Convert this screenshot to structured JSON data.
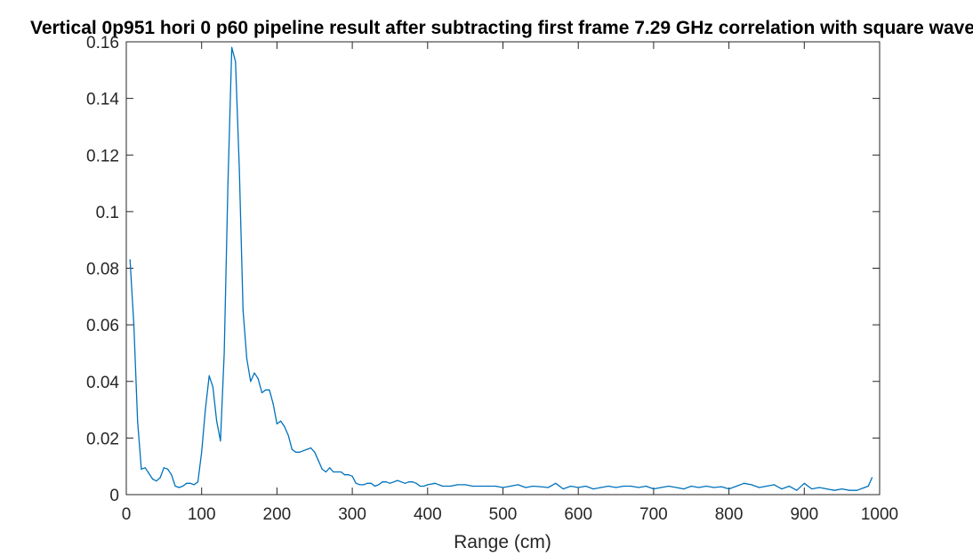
{
  "chart_data": {
    "type": "line",
    "title": "Vertical 0p951 hori 0 p60 pipeline result after subtracting first frame 7.29 GHz correlation with square wave",
    "xlabel": "Range (cm)",
    "ylabel": "",
    "xlim": [
      0,
      1000
    ],
    "ylim": [
      0,
      0.16
    ],
    "xticks": [
      "0",
      "100",
      "200",
      "300",
      "400",
      "500",
      "600",
      "700",
      "800",
      "900",
      "1000"
    ],
    "yticks": [
      "0",
      "0.02",
      "0.04",
      "0.06",
      "0.08",
      "0.1",
      "0.12",
      "0.14",
      "0.16"
    ],
    "grid": false,
    "line_color": "#0072BD",
    "series": [
      {
        "x": [
          5,
          10,
          15,
          20,
          25,
          30,
          35,
          40,
          45,
          50,
          55,
          60,
          65,
          70,
          75,
          80,
          85,
          90,
          95,
          100,
          105,
          110,
          115,
          120,
          125,
          130,
          135,
          140,
          145,
          150,
          155,
          160,
          165,
          170,
          175,
          180,
          185,
          190,
          195,
          200,
          205,
          210,
          215,
          220,
          225,
          230,
          235,
          240,
          245,
          250,
          255,
          260,
          265,
          270,
          275,
          280,
          285,
          290,
          295,
          300,
          305,
          310,
          315,
          320,
          325,
          330,
          335,
          340,
          345,
          350,
          355,
          360,
          365,
          370,
          375,
          380,
          385,
          390,
          395,
          400,
          410,
          420,
          430,
          440,
          450,
          460,
          470,
          480,
          490,
          500,
          510,
          520,
          530,
          540,
          550,
          560,
          570,
          580,
          590,
          600,
          610,
          620,
          630,
          640,
          650,
          660,
          670,
          680,
          690,
          700,
          710,
          720,
          730,
          740,
          750,
          760,
          770,
          780,
          790,
          800,
          810,
          820,
          830,
          840,
          850,
          860,
          870,
          880,
          890,
          900,
          910,
          920,
          930,
          940,
          950,
          960,
          970,
          980,
          985,
          990
        ],
        "y": [
          0.083,
          0.06,
          0.026,
          0.009,
          0.0095,
          0.0075,
          0.0055,
          0.0048,
          0.006,
          0.0095,
          0.009,
          0.007,
          0.003,
          0.0025,
          0.003,
          0.004,
          0.004,
          0.0035,
          0.0045,
          0.015,
          0.03,
          0.042,
          0.038,
          0.026,
          0.019,
          0.05,
          0.11,
          0.158,
          0.153,
          0.115,
          0.065,
          0.048,
          0.04,
          0.043,
          0.041,
          0.036,
          0.037,
          0.037,
          0.032,
          0.025,
          0.026,
          0.024,
          0.021,
          0.016,
          0.015,
          0.015,
          0.0155,
          0.016,
          0.0165,
          0.015,
          0.012,
          0.009,
          0.008,
          0.0095,
          0.008,
          0.008,
          0.008,
          0.007,
          0.007,
          0.0065,
          0.004,
          0.0035,
          0.0035,
          0.004,
          0.004,
          0.003,
          0.0035,
          0.0045,
          0.0045,
          0.004,
          0.0045,
          0.005,
          0.0045,
          0.004,
          0.0045,
          0.0045,
          0.004,
          0.003,
          0.003,
          0.0035,
          0.004,
          0.003,
          0.003,
          0.0035,
          0.0035,
          0.003,
          0.003,
          0.003,
          0.003,
          0.0025,
          0.003,
          0.0035,
          0.0025,
          0.003,
          0.0028,
          0.0025,
          0.004,
          0.002,
          0.003,
          0.0025,
          0.003,
          0.002,
          0.0025,
          0.003,
          0.0025,
          0.003,
          0.003,
          0.0025,
          0.003,
          0.002,
          0.0025,
          0.003,
          0.0025,
          0.002,
          0.003,
          0.0025,
          0.003,
          0.0025,
          0.0028,
          0.002,
          0.003,
          0.004,
          0.0035,
          0.0025,
          0.003,
          0.0035,
          0.002,
          0.003,
          0.0015,
          0.004,
          0.002,
          0.0025,
          0.002,
          0.0015,
          0.002,
          0.0015,
          0.0015,
          0.0025,
          0.003,
          0.006
        ]
      }
    ]
  }
}
